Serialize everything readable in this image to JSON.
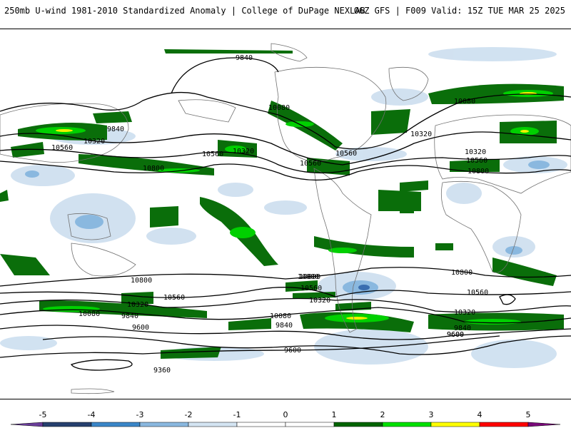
{
  "header": {
    "left": "250mb U-wind 1981-2010 Standardized Anomaly | College of DuPage NEXLAB",
    "right": "06Z GFS | F009 Valid: 15Z TUE MAR 25 2025"
  },
  "contours": {
    "labels": [
      "9840",
      "10080",
      "9840",
      "10320",
      "10560",
      "10560",
      "10320",
      "10800",
      "10560",
      "10080",
      "10320",
      "10560",
      "10800",
      "10320",
      "10560",
      "10800",
      "10800",
      "10560",
      "10080",
      "10320",
      "9840",
      "9600",
      "10800",
      "10560",
      "10320",
      "10080",
      "9840",
      "9600",
      "10800",
      "10560",
      "10320",
      "9840",
      "9600",
      "9600",
      "9360"
    ]
  },
  "colorbar": {
    "ticks": [
      "-5",
      "-4",
      "-3",
      "-2",
      "-1",
      "0",
      "1",
      "2",
      "3",
      "4",
      "5"
    ],
    "colors": [
      "#6a3d9a",
      "#26406e",
      "#3a86c8",
      "#8ab8df",
      "#d4e4f2",
      "#ffffff",
      "#ffffff",
      "#006400",
      "#00e000",
      "#ffff00",
      "#ff0000",
      "#7a0a7a"
    ]
  }
}
